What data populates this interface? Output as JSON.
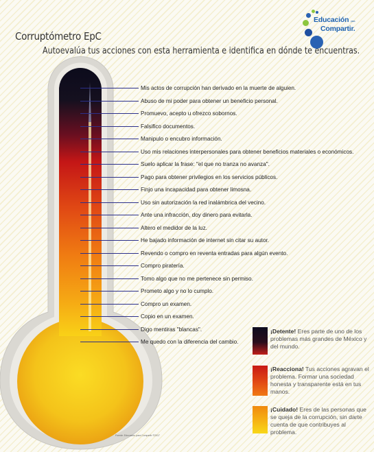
{
  "header": {
    "title": "Corruptómetro EpC",
    "subtitle": "Autoevalúa tus acciones con esta herramienta e identifica en dónde te encuentras."
  },
  "logo": {
    "line1": "Educación",
    "small": "para",
    "line2": "Compartir.",
    "colors": [
      "#2a62b3",
      "#8cc63f",
      "#1f4fa0"
    ]
  },
  "items": [
    "Mis actos de corrupción han derivado en la muerte de alguien.",
    "Abuso de mi poder para obtener un beneficio personal.",
    "Promuevo, acepto u ofrezco sobornos.",
    "Falsifico documentos.",
    "Manipulo o encubro información.",
    "Uso mis relaciones interpersonales para obtener beneficios materiales o económicos.",
    "Suelo aplicar la frase: \"el que no tranza no avanza\".",
    "Pago para obtener privilegios en los servicios públicos.",
    "Finjo una incapacidad para obtener limosna.",
    "Uso sin autorización la red inalámbrica del vecino.",
    "Ante una infracción, doy dinero para evitarla.",
    "Altero el medidor de la luz.",
    "He bajado información de internet sin citar su autor.",
    "Revendo o compro en reventa entradas para algún evento.",
    "Compro piratería.",
    "Tomo algo que no me pertenece sin permiso.",
    "Prometo algo y no lo cumplo.",
    "Compro un examen.",
    "Copio en un examen.",
    "Digo mentiras \"blancas\".",
    "Me quedo con la diferencia del cambio."
  ],
  "legend": [
    {
      "heading": "¡Detente!",
      "text": "Eres parte de uno de los problemas más grandes de México y del mundo.",
      "colors": [
        "#0d0c1e",
        "#6e1020",
        "#c01e1a"
      ]
    },
    {
      "heading": "¡Reacciona!",
      "text": "Tus acciones agravan el problema. Formar una sociedad honesta y transparente está en tus manos.",
      "colors": [
        "#c81a16",
        "#e24a14",
        "#f07a14"
      ]
    },
    {
      "heading": "¡Cuidado!",
      "text": "Eres de las personas que se queja de la corrupción, sin darte cuenta de que contribuyes al problema.",
      "colors": [
        "#f08a10",
        "#f6b414",
        "#f8d818"
      ]
    }
  ],
  "footer": "Fuente: Educación para Compartir ©2017",
  "colors": {
    "tick": "#2b2f8a",
    "text": "#222222"
  }
}
